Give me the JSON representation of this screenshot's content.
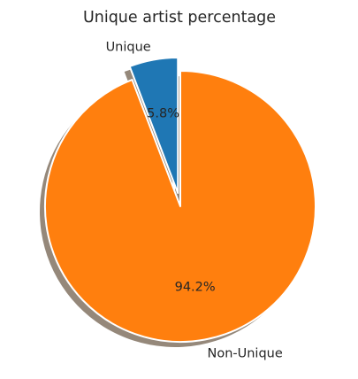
{
  "chart_data": {
    "type": "pie",
    "title": "Unique artist percentage",
    "categories": [
      "Unique",
      "Non-Unique"
    ],
    "values": [
      5.8,
      94.2
    ],
    "percent_labels": [
      "5.8%",
      "94.2%"
    ],
    "colors": [
      "#1f77b4",
      "#ff7f0e"
    ],
    "exploded": [
      true,
      false
    ],
    "shadow": true,
    "start_angle": 90,
    "direction": "counterclockwise"
  }
}
